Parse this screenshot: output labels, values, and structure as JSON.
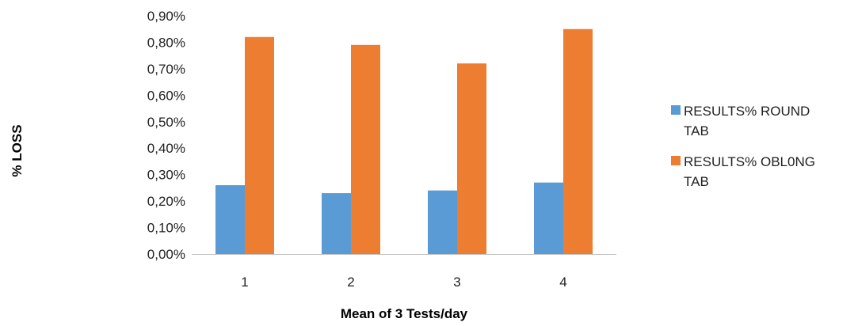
{
  "chart_data": {
    "type": "bar",
    "categories": [
      "1",
      "2",
      "3",
      "4"
    ],
    "series": [
      {
        "name": "RESULTS% ROUND TAB",
        "values": [
          0.26,
          0.23,
          0.24,
          0.27
        ],
        "color": "#5b9bd5"
      },
      {
        "name": "RESULTS% OBL0NG TAB",
        "values": [
          0.82,
          0.79,
          0.72,
          0.85
        ],
        "color": "#ed7d31"
      }
    ],
    "xlabel": "Mean of 3 Tests/day",
    "ylabel": "% LOSS",
    "ylim": [
      0,
      0.9
    ],
    "yticks": [
      "0,00%",
      "0,10%",
      "0,20%",
      "0,30%",
      "0,40%",
      "0,50%",
      "0,60%",
      "0,70%",
      "0,80%",
      "0,90%"
    ],
    "grid": false,
    "legend_position": "right"
  }
}
